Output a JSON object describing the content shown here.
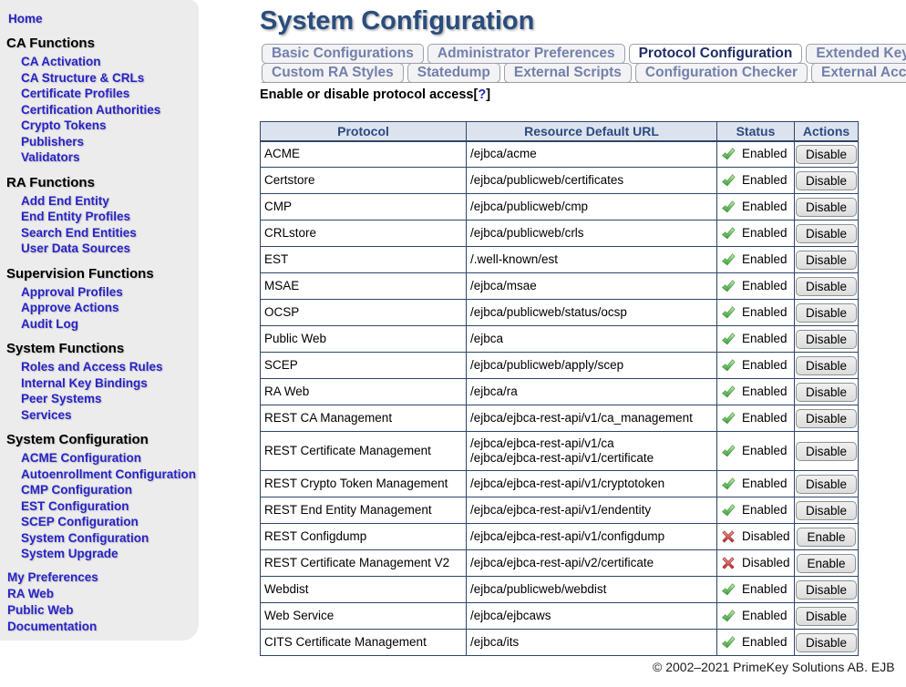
{
  "page": {
    "title": "System Configuration",
    "footer": "© 2002–2021 PrimeKey Solutions AB. EJB"
  },
  "sidebar": {
    "home_label": "Home",
    "sections": [
      {
        "label": "CA Functions",
        "links": [
          "CA Activation",
          "CA Structure & CRLs",
          "Certificate Profiles",
          "Certification Authorities",
          "Crypto Tokens",
          "Publishers",
          "Validators"
        ]
      },
      {
        "label": "RA Functions",
        "links": [
          "Add End Entity",
          "End Entity Profiles",
          "Search End Entities",
          "User Data Sources"
        ]
      },
      {
        "label": "Supervision Functions",
        "links": [
          "Approval Profiles",
          "Approve Actions",
          "Audit Log"
        ]
      },
      {
        "label": "System Functions",
        "links": [
          "Roles and Access Rules",
          "Internal Key Bindings",
          "Peer Systems",
          "Services"
        ]
      },
      {
        "label": "System Configuration",
        "links": [
          "ACME Configuration",
          "Autoenrollment Configuration",
          "CMP Configuration",
          "EST Configuration",
          "SCEP Configuration",
          "System Configuration",
          "System Upgrade"
        ]
      }
    ],
    "footer_links": [
      "My Preferences",
      "RA Web",
      "Public Web",
      "Documentation"
    ]
  },
  "tabs": {
    "row1": [
      {
        "label": "Basic Configurations",
        "active": false
      },
      {
        "label": "Administrator Preferences",
        "active": false
      },
      {
        "label": "Protocol Configuration",
        "active": true
      },
      {
        "label": "Extended Key Usages",
        "active": false
      }
    ],
    "row2": [
      {
        "label": "Custom RA Styles",
        "active": false
      },
      {
        "label": "Statedump",
        "active": false
      },
      {
        "label": "External Scripts",
        "active": false
      },
      {
        "label": "Configuration Checker",
        "active": false
      },
      {
        "label": "External Account Bindings",
        "active": false
      }
    ]
  },
  "content": {
    "heading_text": "Enable or disable protocol access",
    "heading_bracket_open": "[",
    "heading_help": "?",
    "heading_bracket_close": "]",
    "table": {
      "columns": [
        "Protocol",
        "Resource Default URL",
        "Status",
        "Actions"
      ],
      "status_labels": {
        "enabled": "Enabled",
        "disabled": "Disabled"
      },
      "action_labels": {
        "enabled": "Disable",
        "disabled": "Enable"
      },
      "rows": [
        {
          "protocol": "ACME",
          "urls": [
            "/ejbca/acme"
          ],
          "enabled": true
        },
        {
          "protocol": "Certstore",
          "urls": [
            "/ejbca/publicweb/certificates"
          ],
          "enabled": true
        },
        {
          "protocol": "CMP",
          "urls": [
            "/ejbca/publicweb/cmp"
          ],
          "enabled": true
        },
        {
          "protocol": "CRLstore",
          "urls": [
            "/ejbca/publicweb/crls"
          ],
          "enabled": true
        },
        {
          "protocol": "EST",
          "urls": [
            "/.well-known/est"
          ],
          "enabled": true
        },
        {
          "protocol": "MSAE",
          "urls": [
            "/ejbca/msae"
          ],
          "enabled": true
        },
        {
          "protocol": "OCSP",
          "urls": [
            "/ejbca/publicweb/status/ocsp"
          ],
          "enabled": true
        },
        {
          "protocol": "Public Web",
          "urls": [
            "/ejbca"
          ],
          "enabled": true
        },
        {
          "protocol": "SCEP",
          "urls": [
            "/ejbca/publicweb/apply/scep"
          ],
          "enabled": true
        },
        {
          "protocol": "RA Web",
          "urls": [
            "/ejbca/ra"
          ],
          "enabled": true
        },
        {
          "protocol": "REST CA Management",
          "urls": [
            "/ejbca/ejbca-rest-api/v1/ca_management"
          ],
          "enabled": true
        },
        {
          "protocol": "REST Certificate Management",
          "urls": [
            "/ejbca/ejbca-rest-api/v1/ca",
            "/ejbca/ejbca-rest-api/v1/certificate"
          ],
          "enabled": true
        },
        {
          "protocol": "REST Crypto Token Management",
          "urls": [
            "/ejbca/ejbca-rest-api/v1/cryptotoken"
          ],
          "enabled": true
        },
        {
          "protocol": "REST End Entity Management",
          "urls": [
            "/ejbca/ejbca-rest-api/v1/endentity"
          ],
          "enabled": true
        },
        {
          "protocol": "REST Configdump",
          "urls": [
            "/ejbca/ejbca-rest-api/v1/configdump"
          ],
          "enabled": false
        },
        {
          "protocol": "REST Certificate Management V2",
          "urls": [
            "/ejbca/ejbca-rest-api/v2/certificate"
          ],
          "enabled": false
        },
        {
          "protocol": "Webdist",
          "urls": [
            "/ejbca/publicweb/webdist"
          ],
          "enabled": true
        },
        {
          "protocol": "Web Service",
          "urls": [
            "/ejbca/ejbcaws"
          ],
          "enabled": true
        },
        {
          "protocol": "CITS Certificate Management",
          "urls": [
            "/ejbca/its"
          ],
          "enabled": true
        }
      ]
    }
  },
  "colors": {
    "link_blue": "#2823c8",
    "title_blue": "#2a4d7d",
    "table_border": "#2f4668",
    "header_bg": "#dde3ee",
    "status_enabled_green": "#3ca53c",
    "status_disabled_red": "#cc2222"
  }
}
